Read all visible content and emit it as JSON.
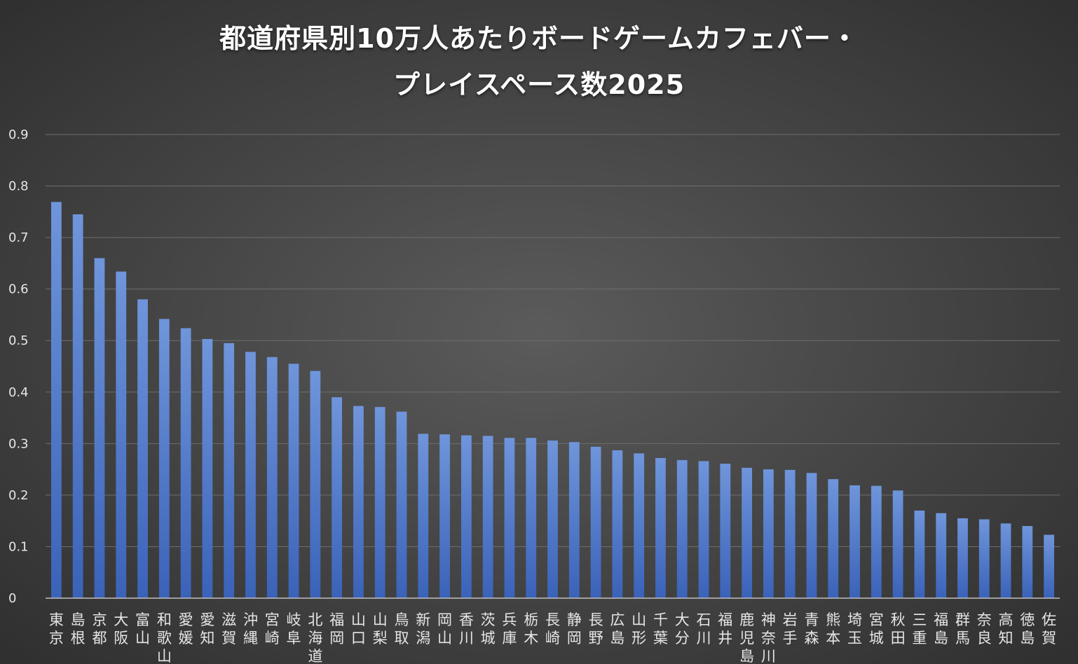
{
  "chart_data": {
    "type": "bar",
    "title_lines": [
      "都道府県別10万人あたりボードゲームカフェバー・",
      "プレイスペース数2025"
    ],
    "ylim": [
      0,
      0.9
    ],
    "yticks": [
      "0",
      "0.1",
      "0.2",
      "0.3",
      "0.4",
      "0.5",
      "0.6",
      "0.7",
      "0.8",
      "0.9"
    ],
    "grid": true,
    "legend": "none",
    "bar_color": "#4472c4",
    "categories": [
      "東京",
      "島根",
      "京都",
      "大阪",
      "富山",
      "和歌山",
      "愛媛",
      "愛知",
      "滋賀",
      "沖縄",
      "宮崎",
      "岐阜",
      "北海道",
      "福岡",
      "山口",
      "山梨",
      "鳥取",
      "新潟",
      "岡山",
      "香川",
      "茨城",
      "兵庫",
      "栃木",
      "長崎",
      "静岡",
      "長野",
      "広島",
      "山形",
      "千葉",
      "大分",
      "石川",
      "福井",
      "鹿児島",
      "神奈川",
      "岩手",
      "青森",
      "熊本",
      "埼玉",
      "宮城",
      "秋田",
      "三重",
      "福島",
      "群馬",
      "奈良",
      "高知",
      "徳島",
      "佐賀"
    ],
    "values": [
      0.769,
      0.745,
      0.66,
      0.634,
      0.58,
      0.542,
      0.524,
      0.503,
      0.495,
      0.478,
      0.468,
      0.455,
      0.441,
      0.39,
      0.373,
      0.371,
      0.362,
      0.319,
      0.318,
      0.316,
      0.315,
      0.311,
      0.311,
      0.306,
      0.303,
      0.294,
      0.287,
      0.281,
      0.272,
      0.268,
      0.266,
      0.261,
      0.253,
      0.25,
      0.249,
      0.243,
      0.231,
      0.219,
      0.218,
      0.209,
      0.17,
      0.165,
      0.155,
      0.153,
      0.145,
      0.14,
      0.123
    ]
  }
}
